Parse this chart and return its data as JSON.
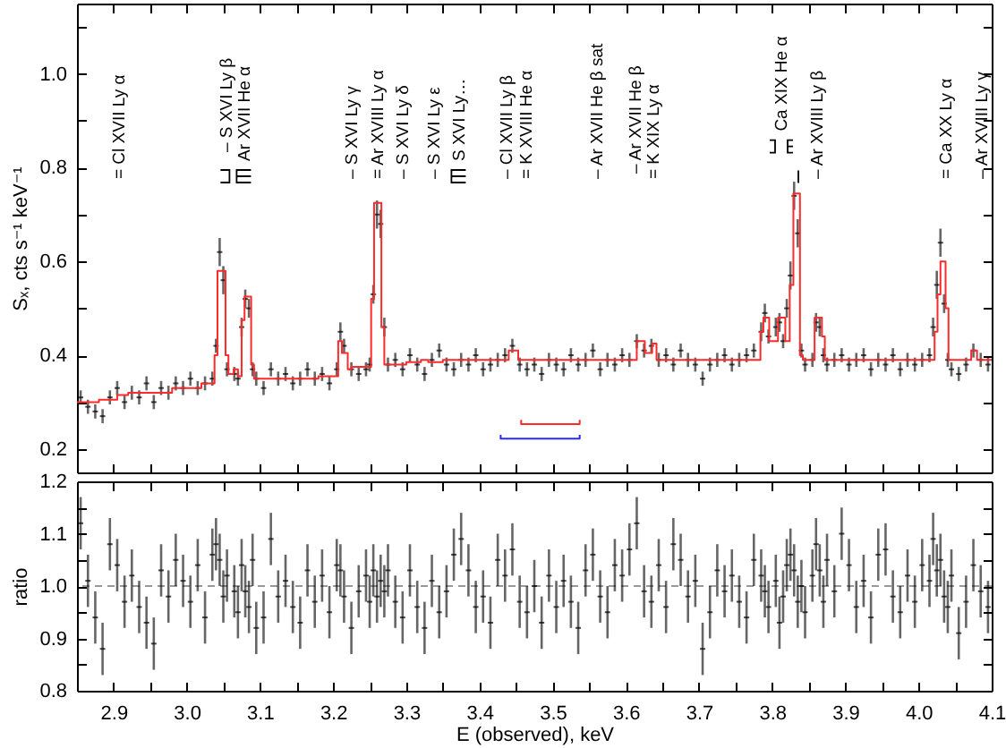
{
  "chart_data": [
    {
      "type": "scatter",
      "ylabel": "Sₓ, cts s⁻¹ keV⁻¹",
      "x": [
        2.855,
        2.865,
        2.875,
        2.885,
        2.895,
        2.905,
        2.915,
        2.925,
        2.935,
        2.945,
        2.955,
        2.965,
        2.975,
        2.985,
        2.995,
        3.005,
        3.015,
        3.025,
        3.035,
        3.04,
        3.045,
        3.05,
        3.055,
        3.065,
        3.07,
        3.075,
        3.08,
        3.085,
        3.09,
        3.095,
        3.105,
        3.115,
        3.125,
        3.135,
        3.145,
        3.155,
        3.165,
        3.175,
        3.185,
        3.195,
        3.205,
        3.21,
        3.215,
        3.225,
        3.235,
        3.245,
        3.25,
        3.255,
        3.26,
        3.265,
        3.27,
        3.275,
        3.285,
        3.295,
        3.305,
        3.315,
        3.325,
        3.335,
        3.345,
        3.355,
        3.365,
        3.375,
        3.385,
        3.395,
        3.405,
        3.415,
        3.425,
        3.435,
        3.445,
        3.455,
        3.465,
        3.475,
        3.485,
        3.495,
        3.505,
        3.515,
        3.525,
        3.535,
        3.545,
        3.555,
        3.565,
        3.575,
        3.585,
        3.595,
        3.605,
        3.615,
        3.625,
        3.635,
        3.645,
        3.655,
        3.665,
        3.675,
        3.685,
        3.695,
        3.705,
        3.715,
        3.725,
        3.735,
        3.745,
        3.755,
        3.765,
        3.775,
        3.785,
        3.79,
        3.795,
        3.805,
        3.81,
        3.815,
        3.82,
        3.825,
        3.83,
        3.835,
        3.84,
        3.845,
        3.855,
        3.86,
        3.865,
        3.87,
        3.875,
        3.885,
        3.895,
        3.905,
        3.915,
        3.925,
        3.935,
        3.945,
        3.955,
        3.965,
        3.975,
        3.985,
        3.995,
        4.005,
        4.015,
        4.02,
        4.025,
        4.03,
        4.035,
        4.04,
        4.045,
        4.055,
        4.065,
        4.075,
        4.085,
        4.095
      ],
      "xlim": [
        2.85,
        4.1
      ],
      "xticks": [
        2.9,
        2.95,
        3,
        3.05,
        3.1,
        3.15,
        3.2,
        3.25,
        3.3,
        3.35,
        3.4,
        3.45,
        3.5,
        3.55,
        3.6,
        3.65,
        3.7,
        3.75,
        3.8,
        3.85,
        3.9,
        3.95,
        4,
        4.05,
        4.1
      ],
      "ylim": [
        0.15,
        1.15
      ],
      "yticks": [
        0.2,
        {
          "value": 0.3,
          "label": null
        },
        0.4,
        {
          "value": 0.5,
          "label": null
        },
        0.6,
        {
          "value": 0.7,
          "label": null
        },
        0.8,
        {
          "value": 0.9,
          "label": null
        },
        {
          "value": 1,
          "label": "1.0"
        },
        {
          "value": 1.1,
          "label": null
        }
      ],
      "tick_labels": "y",
      "series": [
        {
          "color": "#000000",
          "values": [
            0.31,
            0.29,
            0.28,
            0.27,
            0.31,
            0.33,
            0.3,
            0.32,
            0.31,
            0.34,
            0.3,
            0.33,
            0.32,
            0.34,
            0.33,
            0.35,
            0.33,
            0.34,
            0.35,
            0.42,
            0.62,
            0.56,
            0.37,
            0.36,
            0.35,
            0.46,
            0.52,
            0.5,
            0.37,
            0.35,
            0.33,
            0.37,
            0.35,
            0.36,
            0.34,
            0.35,
            0.37,
            0.35,
            0.36,
            0.34,
            0.37,
            0.45,
            0.42,
            0.37,
            0.36,
            0.37,
            0.38,
            0.53,
            0.7,
            0.68,
            0.46,
            0.38,
            0.39,
            0.37,
            0.4,
            0.38,
            0.36,
            0.39,
            0.41,
            0.38,
            0.37,
            0.39,
            0.38,
            0.4,
            0.37,
            0.38,
            0.39,
            0.4,
            0.42,
            0.38,
            0.37,
            0.38,
            0.36,
            0.39,
            0.38,
            0.37,
            0.4,
            0.38,
            0.39,
            0.41,
            0.37,
            0.39,
            0.38,
            0.4,
            0.39,
            0.43,
            0.41,
            0.42,
            0.39,
            0.4,
            0.38,
            0.41,
            0.39,
            0.38,
            0.35,
            0.38,
            0.39,
            0.4,
            0.38,
            0.39,
            0.4,
            0.41,
            0.45,
            0.49,
            0.44,
            0.46,
            0.47,
            0.43,
            0.5,
            0.57,
            0.74,
            0.66,
            0.41,
            0.38,
            0.39,
            0.47,
            0.46,
            0.4,
            0.38,
            0.39,
            0.4,
            0.38,
            0.39,
            0.4,
            0.37,
            0.39,
            0.38,
            0.4,
            0.37,
            0.39,
            0.38,
            0.39,
            0.4,
            0.46,
            0.55,
            0.64,
            0.51,
            0.39,
            0.37,
            0.36,
            0.38,
            0.41,
            0.39,
            0.38
          ],
          "errors": [
            0.015,
            0.015,
            0.015,
            0.015,
            0.015,
            0.015,
            0.015,
            0.015,
            0.015,
            0.015,
            0.015,
            0.015,
            0.015,
            0.015,
            0.015,
            0.015,
            0.015,
            0.015,
            0.015,
            0.015,
            0.03,
            0.03,
            0.015,
            0.015,
            0.015,
            0.02,
            0.02,
            0.02,
            0.015,
            0.015,
            0.015,
            0.015,
            0.015,
            0.015,
            0.015,
            0.015,
            0.015,
            0.015,
            0.015,
            0.015,
            0.015,
            0.02,
            0.015,
            0.015,
            0.015,
            0.015,
            0.015,
            0.02,
            0.03,
            0.03,
            0.02,
            0.015,
            0.015,
            0.015,
            0.015,
            0.015,
            0.015,
            0.015,
            0.015,
            0.015,
            0.015,
            0.015,
            0.015,
            0.015,
            0.015,
            0.015,
            0.015,
            0.015,
            0.015,
            0.015,
            0.015,
            0.015,
            0.015,
            0.015,
            0.015,
            0.015,
            0.015,
            0.015,
            0.015,
            0.015,
            0.015,
            0.015,
            0.015,
            0.015,
            0.015,
            0.015,
            0.015,
            0.015,
            0.015,
            0.015,
            0.015,
            0.015,
            0.015,
            0.015,
            0.015,
            0.015,
            0.015,
            0.015,
            0.015,
            0.015,
            0.015,
            0.015,
            0.02,
            0.02,
            0.015,
            0.02,
            0.02,
            0.015,
            0.02,
            0.03,
            0.03,
            0.03,
            0.015,
            0.015,
            0.015,
            0.02,
            0.02,
            0.015,
            0.015,
            0.015,
            0.015,
            0.015,
            0.015,
            0.015,
            0.015,
            0.015,
            0.015,
            0.015,
            0.015,
            0.015,
            0.015,
            0.015,
            0.015,
            0.02,
            0.03,
            0.03,
            0.02,
            0.015,
            0.015,
            0.015,
            0.015,
            0.015,
            0.015,
            0.015
          ]
        },
        {
          "type": "step",
          "color": "#ff2a2a",
          "x": [
            2.85,
            2.88,
            2.905,
            2.92,
            2.95,
            2.98,
            3.0,
            3.02,
            3.038,
            3.042,
            3.053,
            3.057,
            3.064,
            3.07,
            3.075,
            3.079,
            3.088,
            3.092,
            3.13,
            3.18,
            3.207,
            3.212,
            3.22,
            3.225,
            3.252,
            3.256,
            3.266,
            3.27,
            3.3,
            3.32,
            3.33,
            3.35,
            3.44,
            3.453,
            3.615,
            3.626,
            3.636,
            3.642,
            3.784,
            3.788,
            3.796,
            3.808,
            3.818,
            3.824,
            3.829,
            3.838,
            3.842,
            3.858,
            3.868,
            3.872,
            4.022,
            4.026,
            4.03,
            4.037,
            4.041,
            4.072,
            4.08,
            4.1
          ],
          "values": [
            0.3,
            0.305,
            0.315,
            0.32,
            0.32,
            0.33,
            0.33,
            0.34,
            0.4,
            0.58,
            0.4,
            0.36,
            0.37,
            0.355,
            0.475,
            0.525,
            0.38,
            0.35,
            0.35,
            0.355,
            0.43,
            0.405,
            0.37,
            0.375,
            0.52,
            0.725,
            0.46,
            0.38,
            0.385,
            0.39,
            0.385,
            0.39,
            0.41,
            0.39,
            0.43,
            0.405,
            0.425,
            0.39,
            0.45,
            0.48,
            0.43,
            0.48,
            0.43,
            0.55,
            0.745,
            0.4,
            0.39,
            0.48,
            0.44,
            0.39,
            0.45,
            0.53,
            0.6,
            0.5,
            0.39,
            0.41,
            0.39,
            0.39
          ]
        },
        {
          "type": "line",
          "color": "#ff2a2a",
          "x": [
            3.457,
            3.457,
            3.537,
            3.537
          ],
          "values": [
            0.262,
            0.253,
            0.253,
            0.262
          ]
        },
        {
          "type": "line",
          "color": "#2a2aff",
          "x": [
            3.429,
            3.429,
            3.537,
            3.537
          ],
          "values": [
            0.23,
            0.222,
            0.222,
            0.23
          ]
        }
      ],
      "annotations": [
        "= Cl XVII Ly α",
        "– S XVI Ly β",
        "Ar XVII He α",
        "– S XVI Ly γ",
        "= Ar XVIII Ly α",
        "– S XVI Ly δ",
        "– S XVI Ly ε",
        "S XVI Ly…",
        "– Cl XVII Ly β",
        "= K XVIII He α",
        "– Ar XVII He β sat",
        "– Ar XVII He β",
        "= K XIX Ly α",
        "Ca XIX He α",
        "– Ar XVIII Ly β",
        "= Ca XX Ly α",
        "– Ar XVIII Ly γ"
      ]
    },
    {
      "type": "scatter",
      "xlabel": "E (observed), keV",
      "ylabel": "ratio",
      "x": [
        2.855,
        2.865,
        2.875,
        2.885,
        2.895,
        2.905,
        2.915,
        2.925,
        2.935,
        2.945,
        2.955,
        2.965,
        2.975,
        2.985,
        2.995,
        3.005,
        3.015,
        3.025,
        3.035,
        3.04,
        3.045,
        3.05,
        3.055,
        3.065,
        3.07,
        3.075,
        3.08,
        3.085,
        3.09,
        3.095,
        3.105,
        3.115,
        3.125,
        3.135,
        3.145,
        3.155,
        3.165,
        3.175,
        3.185,
        3.195,
        3.205,
        3.21,
        3.215,
        3.225,
        3.235,
        3.245,
        3.25,
        3.255,
        3.26,
        3.265,
        3.27,
        3.275,
        3.285,
        3.295,
        3.305,
        3.315,
        3.325,
        3.335,
        3.345,
        3.355,
        3.365,
        3.375,
        3.385,
        3.395,
        3.405,
        3.415,
        3.425,
        3.435,
        3.445,
        3.455,
        3.465,
        3.475,
        3.485,
        3.495,
        3.505,
        3.515,
        3.525,
        3.535,
        3.545,
        3.555,
        3.565,
        3.575,
        3.585,
        3.595,
        3.605,
        3.615,
        3.625,
        3.635,
        3.645,
        3.655,
        3.665,
        3.675,
        3.685,
        3.695,
        3.705,
        3.715,
        3.725,
        3.735,
        3.745,
        3.755,
        3.765,
        3.775,
        3.785,
        3.79,
        3.795,
        3.805,
        3.81,
        3.815,
        3.82,
        3.825,
        3.83,
        3.835,
        3.84,
        3.845,
        3.855,
        3.86,
        3.865,
        3.87,
        3.875,
        3.885,
        3.895,
        3.905,
        3.915,
        3.925,
        3.935,
        3.945,
        3.955,
        3.965,
        3.975,
        3.985,
        3.995,
        4.005,
        4.015,
        4.02,
        4.025,
        4.03,
        4.035,
        4.04,
        4.045,
        4.055,
        4.065,
        4.075,
        4.085,
        4.095
      ],
      "xlim": [
        2.85,
        4.1
      ],
      "xticks": [
        2.9,
        {
          "value": 2.95,
          "label": null
        },
        {
          "value": 3,
          "label": "3.0"
        },
        {
          "value": 3.05,
          "label": null
        },
        3.1,
        {
          "value": 3.15,
          "label": null
        },
        3.2,
        {
          "value": 3.25,
          "label": null
        },
        3.3,
        {
          "value": 3.35,
          "label": null
        },
        3.4,
        {
          "value": 3.45,
          "label": null
        },
        3.5,
        {
          "value": 3.55,
          "label": null
        },
        3.6,
        {
          "value": 3.65,
          "label": null
        },
        3.7,
        {
          "value": 3.75,
          "label": null
        },
        3.8,
        {
          "value": 3.85,
          "label": null
        },
        3.9,
        {
          "value": 3.95,
          "label": null
        },
        {
          "value": 4,
          "label": "4.0"
        },
        {
          "value": 4.05,
          "label": null
        },
        4.1
      ],
      "ylim": [
        0.8,
        1.2
      ],
      "yticks": [
        0.8,
        {
          "value": 0.85,
          "label": null
        },
        0.9,
        {
          "value": 0.95,
          "label": null
        },
        {
          "value": 1,
          "label": "1.0"
        },
        {
          "value": 1.05,
          "label": null
        },
        1.1,
        {
          "value": 1.15,
          "label": null
        },
        1.2
      ],
      "series": [
        {
          "color": "#000000",
          "values": [
            1.12,
            1.01,
            0.94,
            0.88,
            1.08,
            1.04,
            0.97,
            1.02,
            0.96,
            0.93,
            0.89,
            1.03,
            0.98,
            1.05,
            1.01,
            0.97,
            1.04,
            0.94,
            1.06,
            1.08,
            1.05,
            0.98,
            1.02,
            0.99,
            0.95,
            1.04,
            0.99,
            0.96,
            1.05,
            0.92,
            0.94,
            1.09,
            0.98,
            1.01,
            0.96,
            0.93,
            1.03,
            0.97,
            1.02,
            0.95,
            1.04,
            1.03,
            0.98,
            0.92,
            0.99,
            1.02,
            0.97,
            1.03,
            0.98,
            1.01,
            0.99,
            1.03,
            0.97,
            0.94,
            1.03,
            0.96,
            0.92,
            1.01,
            0.95,
            0.99,
            1.06,
            1.09,
            1.03,
            0.96,
            0.98,
            0.93,
            1.05,
            1.02,
            1.07,
            0.97,
            0.95,
            1.0,
            0.93,
            1.02,
            0.96,
            1.01,
            0.97,
            0.92,
            1.03,
            1.06,
            0.98,
            0.95,
            1.04,
            1.02,
            1.07,
            1.12,
            0.99,
            0.97,
            1.04,
            0.96,
            1.08,
            1.05,
            0.98,
            1.01,
            0.88,
            0.95,
            1.03,
            0.99,
            1.02,
            0.97,
            0.94,
            1.05,
            1.02,
            0.99,
            0.96,
            1.01,
            0.93,
            0.98,
            1.04,
            1.06,
            1.03,
            0.97,
            1.0,
            0.95,
            1.02,
            1.08,
            1.03,
            0.97,
            1.05,
            0.99,
            1.1,
            1.04,
            0.96,
            1.01,
            0.94,
            1.06,
            1.07,
            0.98,
            0.95,
            1.02,
            0.97,
            1.04,
            1.01,
            1.09,
            1.03,
            1.05,
            0.98,
            0.96,
            1.02,
            0.91,
            0.97,
            1.04,
            0.99,
            0.96
          ],
          "errors": [
            0.05,
            0.05,
            0.05,
            0.05,
            0.05,
            0.05,
            0.05,
            0.05,
            0.05,
            0.05,
            0.05,
            0.05,
            0.05,
            0.05,
            0.05,
            0.05,
            0.05,
            0.05,
            0.05,
            0.05,
            0.05,
            0.05,
            0.05,
            0.05,
            0.05,
            0.05,
            0.05,
            0.05,
            0.05,
            0.05,
            0.05,
            0.05,
            0.05,
            0.05,
            0.05,
            0.05,
            0.05,
            0.05,
            0.05,
            0.05,
            0.05,
            0.05,
            0.05,
            0.05,
            0.05,
            0.05,
            0.05,
            0.05,
            0.05,
            0.05,
            0.05,
            0.05,
            0.05,
            0.05,
            0.05,
            0.05,
            0.05,
            0.05,
            0.05,
            0.05,
            0.05,
            0.05,
            0.05,
            0.05,
            0.05,
            0.05,
            0.05,
            0.05,
            0.05,
            0.05,
            0.05,
            0.05,
            0.05,
            0.05,
            0.05,
            0.05,
            0.05,
            0.05,
            0.05,
            0.05,
            0.05,
            0.05,
            0.05,
            0.05,
            0.05,
            0.05,
            0.05,
            0.05,
            0.05,
            0.05,
            0.05,
            0.05,
            0.05,
            0.05,
            0.05,
            0.05,
            0.05,
            0.05,
            0.05,
            0.05,
            0.05,
            0.05,
            0.05,
            0.05,
            0.05,
            0.05,
            0.05,
            0.05,
            0.05,
            0.05,
            0.05,
            0.05,
            0.05,
            0.05,
            0.05,
            0.05,
            0.05,
            0.05,
            0.05,
            0.05,
            0.05,
            0.05,
            0.05,
            0.05,
            0.05,
            0.05,
            0.05,
            0.05,
            0.05,
            0.05,
            0.05,
            0.05,
            0.05,
            0.05,
            0.05,
            0.05,
            0.05,
            0.05,
            0.05,
            0.05,
            0.05,
            0.05,
            0.05,
            0.05
          ]
        }
      ],
      "ref_lines": [
        {
          "axis": "y",
          "value": 1,
          "color": "#999999",
          "line_style": "dashed"
        }
      ]
    }
  ]
}
